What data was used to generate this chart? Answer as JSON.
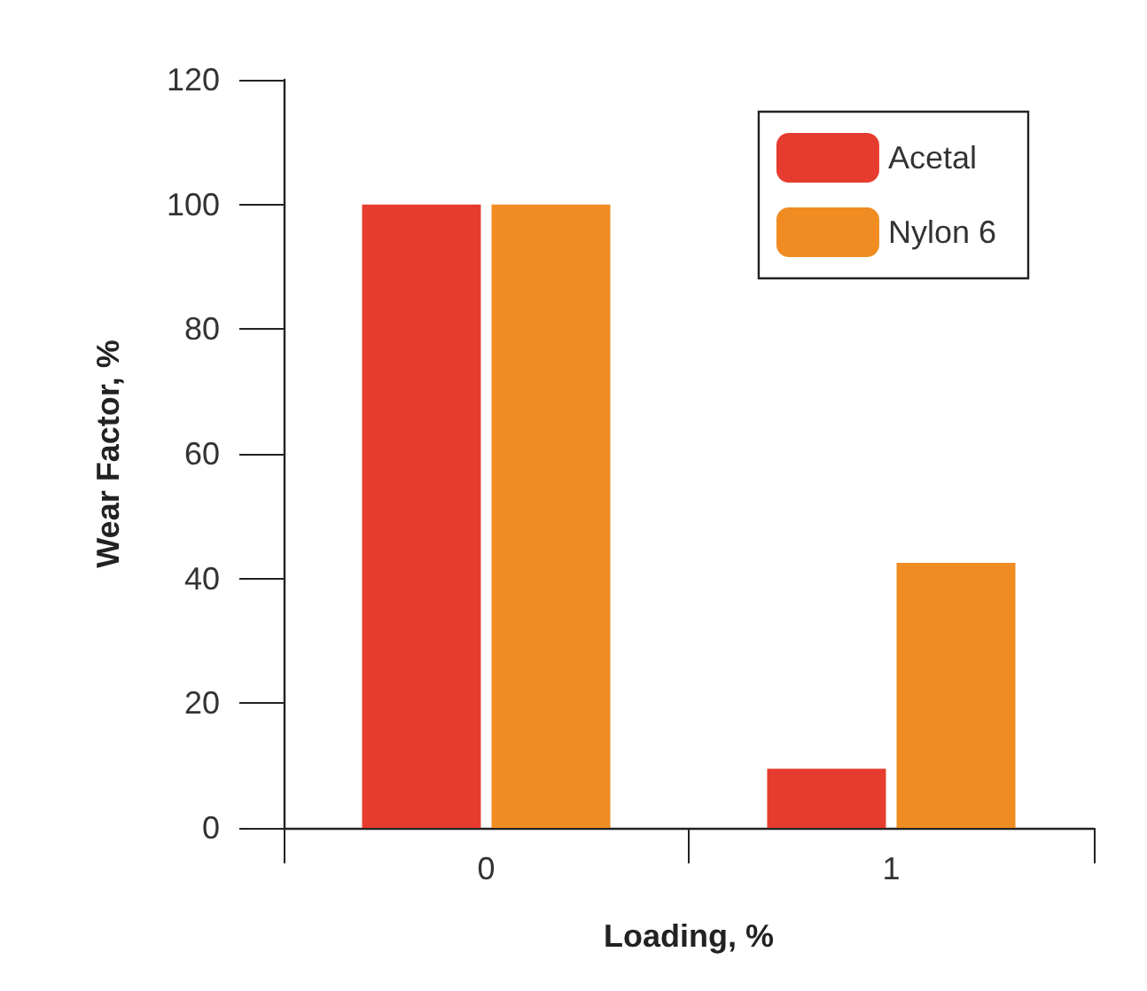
{
  "chart_data": {
    "type": "bar",
    "xlabel": "Loading, %",
    "ylabel": "Wear Factor, %",
    "categories": [
      "0",
      "1"
    ],
    "series": [
      {
        "name": "Acetal",
        "color": "#e63c2f",
        "values": [
          100,
          9.5
        ]
      },
      {
        "name": "Nylon 6",
        "color": "#f08c21",
        "values": [
          100,
          42.5
        ]
      }
    ],
    "ylim": [
      0,
      120
    ],
    "yticks": [
      0,
      20,
      40,
      60,
      80,
      100,
      120
    ],
    "grid": false,
    "legend": "top right"
  }
}
